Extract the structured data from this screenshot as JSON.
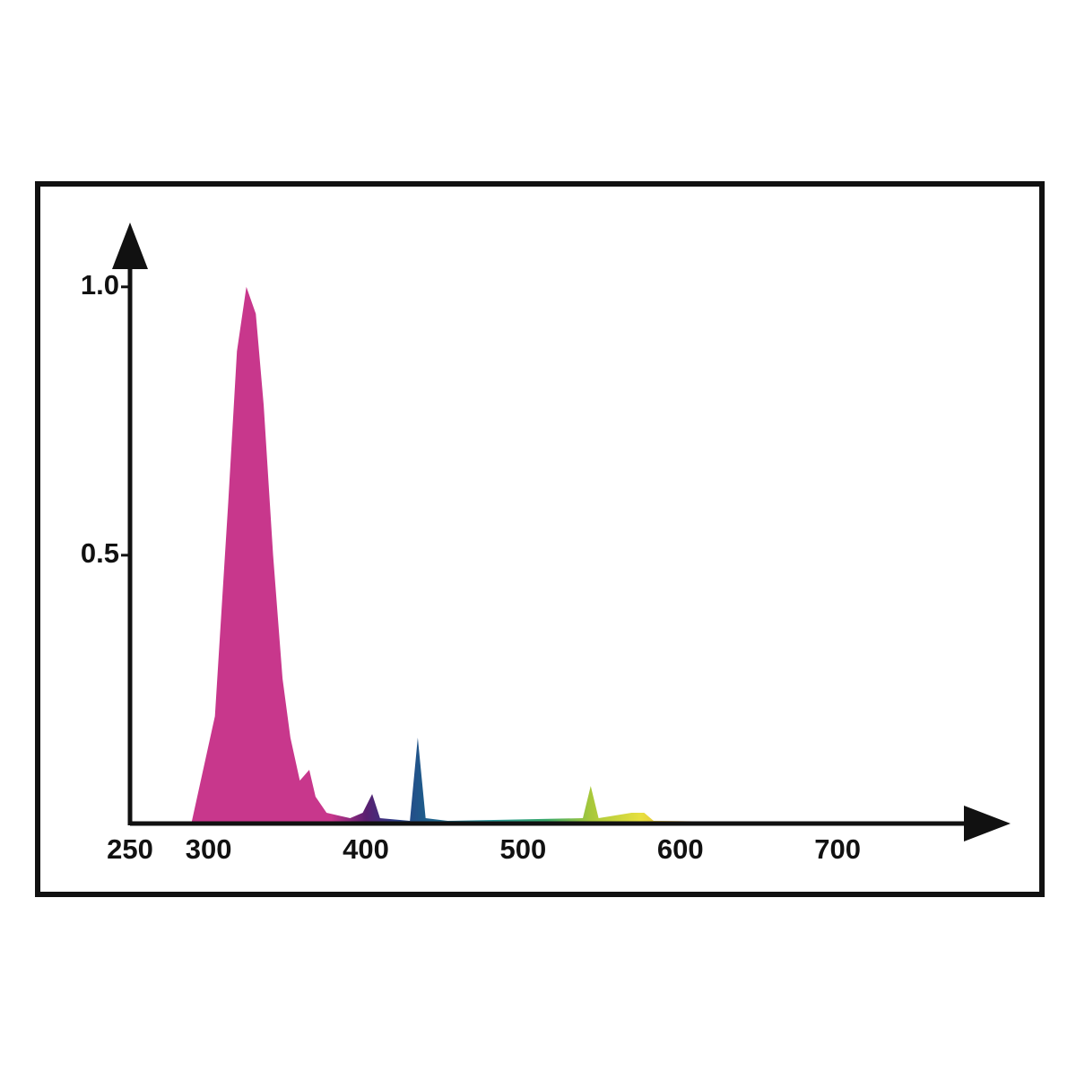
{
  "chart_data": {
    "type": "area",
    "x": [
      289,
      295,
      304,
      312.5,
      318,
      324,
      330,
      335,
      341,
      347,
      352,
      358,
      364,
      368,
      375,
      390,
      398,
      404,
      409,
      428,
      433,
      438,
      452,
      538,
      543,
      548,
      569,
      577,
      583,
      726
    ],
    "values": [
      0,
      0.08,
      0.2,
      0.6,
      0.88,
      1.0,
      0.95,
      0.78,
      0.5,
      0.27,
      0.16,
      0.08,
      0.1,
      0.05,
      0.02,
      0.01,
      0.02,
      0.055,
      0.01,
      0.005,
      0.16,
      0.01,
      0.005,
      0.01,
      0.07,
      0.01,
      0.02,
      0.02,
      0.005,
      0
    ],
    "color_stops": [
      {
        "x": 289,
        "color": "#c8378c"
      },
      {
        "x": 378,
        "color": "#c8378c"
      },
      {
        "x": 400,
        "color": "#5a1f70"
      },
      {
        "x": 420,
        "color": "#2a3f88"
      },
      {
        "x": 436,
        "color": "#1f5a8a"
      },
      {
        "x": 480,
        "color": "#2a9a9a"
      },
      {
        "x": 515,
        "color": "#3aa86a"
      },
      {
        "x": 543,
        "color": "#a8c83a"
      },
      {
        "x": 575,
        "color": "#e8e040"
      },
      {
        "x": 620,
        "color": "#e07a30"
      },
      {
        "x": 680,
        "color": "#d83040"
      },
      {
        "x": 726,
        "color": "#a02030"
      }
    ],
    "xlim": [
      250,
      810
    ],
    "ylim": [
      0,
      1.12
    ],
    "xticks": [
      250,
      300,
      400,
      500,
      600,
      700
    ],
    "yticks": [
      0.5,
      {
        "value": 1,
        "label": "1.0"
      }
    ],
    "grid": false
  }
}
